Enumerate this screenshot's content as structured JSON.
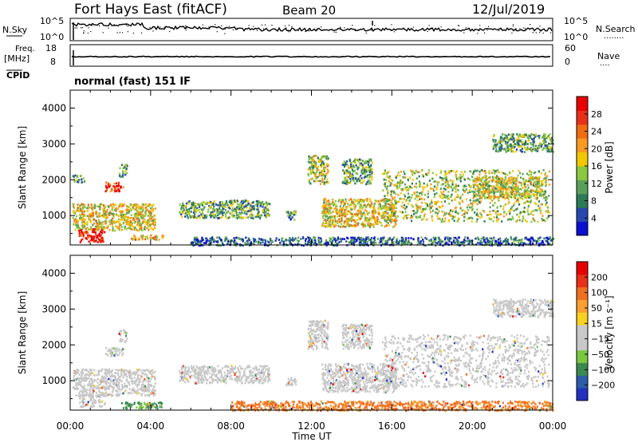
{
  "header": {
    "station": "Fort Hays East (fitACF)",
    "beam": "Beam 20",
    "date": "12/Jul/2019"
  },
  "top_panels": {
    "nsky_label": "N.Sky",
    "nsearch_label": "N.Search",
    "nsearch_dots": "........",
    "freq_label": "Freq.",
    "freq_unit": "[MHz]",
    "nave_label": "Nave",
    "nave_dots": "....",
    "cpid_label": "CPID",
    "noise_ticks_left": [
      "10^5",
      "10^0"
    ],
    "noise_ticks_right": [
      "10^5",
      "10^0"
    ],
    "freq_ticks": [
      "18",
      "8"
    ],
    "nave_ticks": [
      "60",
      "0"
    ],
    "program": "normal (fast) 151 IF"
  },
  "chart_data": [
    {
      "type": "heatmap",
      "name": "power",
      "ylabel": "Slant Range [km]",
      "xlabel": "Time UT",
      "xlim_hours": [
        0,
        24
      ],
      "ylim_km": [
        180,
        4500
      ],
      "x_ticks": [
        "00:00",
        "04:00",
        "08:00",
        "12:00",
        "16:00",
        "20:00",
        "00:00"
      ],
      "y_ticks": [
        "1000",
        "2000",
        "3000",
        "4000"
      ],
      "colorbar": {
        "label": "Power [dB]",
        "ticks": [
          "4",
          "8",
          "12",
          "16",
          "20",
          "24",
          "28"
        ],
        "colors": [
          "#0a10d0",
          "#2848b0",
          "#2a7a58",
          "#5aa05a",
          "#8cc840",
          "#f0c800",
          "#f89a20",
          "#f06c10",
          "#e83018",
          "#e80000"
        ]
      },
      "regions": [
        {
          "t0": 0.1,
          "t1": 4.2,
          "r0": 600,
          "r1": 1350,
          "level": 0.55
        },
        {
          "t0": 0.4,
          "t1": 1.7,
          "r0": 280,
          "r1": 650,
          "level": 0.95
        },
        {
          "t0": 1.7,
          "t1": 2.6,
          "r0": 1700,
          "r1": 1950,
          "level": 0.85
        },
        {
          "t0": 0.1,
          "t1": 0.7,
          "r0": 1950,
          "r1": 2150,
          "level": 0.3
        },
        {
          "t0": 2.4,
          "t1": 2.8,
          "r0": 2100,
          "r1": 2450,
          "level": 0.35
        },
        {
          "t0": 3.0,
          "t1": 4.6,
          "r0": 350,
          "r1": 480,
          "level": 0.6
        },
        {
          "t0": 5.4,
          "t1": 9.9,
          "r0": 950,
          "r1": 1450,
          "level": 0.35
        },
        {
          "t0": 10.7,
          "t1": 11.2,
          "r0": 900,
          "r1": 1150,
          "level": 0.3
        },
        {
          "t0": 11.8,
          "t1": 12.8,
          "r0": 1900,
          "r1": 2700,
          "level": 0.45
        },
        {
          "t0": 12.5,
          "t1": 16.2,
          "r0": 700,
          "r1": 1500,
          "level": 0.55
        },
        {
          "t0": 13.5,
          "t1": 15.0,
          "r0": 1900,
          "r1": 2600,
          "level": 0.35
        },
        {
          "t0": 15.5,
          "t1": 23.8,
          "r0": 850,
          "r1": 2300,
          "level": 0.45
        },
        {
          "t0": 20.0,
          "t1": 23.5,
          "r0": 1500,
          "r1": 2100,
          "level": 0.5
        },
        {
          "t0": 21.0,
          "t1": 24.0,
          "r0": 2800,
          "r1": 3300,
          "level": 0.35
        },
        {
          "t0": 6.0,
          "t1": 24.0,
          "r0": 190,
          "r1": 420,
          "level": 0.2
        }
      ]
    },
    {
      "type": "heatmap",
      "name": "velocity",
      "ylabel": "Slant Range [km]",
      "xlabel": "Time UT",
      "xlim_hours": [
        0,
        24
      ],
      "ylim_km": [
        180,
        4500
      ],
      "x_ticks": [
        "00:00",
        "04:00",
        "08:00",
        "12:00",
        "16:00",
        "20:00",
        "00:00"
      ],
      "y_ticks": [
        "1000",
        "2000",
        "3000",
        "4000"
      ],
      "colorbar": {
        "label": "Velocity [m s⁻¹]",
        "ticks": [
          "200",
          "100",
          "50",
          "15",
          "−15",
          "−50",
          "−100",
          "−200"
        ],
        "colors": [
          "#2230c0",
          "#2d5ca8",
          "#3a8a50",
          "#78c840",
          "#c8c8c8",
          "#c8c8c8",
          "#f8d020",
          "#f8a030",
          "#f07020",
          "#e83018",
          "#e80000"
        ]
      },
      "regions": [
        {
          "t0": 0.1,
          "t1": 4.2,
          "r0": 600,
          "r1": 1350,
          "level": 0.45
        },
        {
          "t0": 0.4,
          "t1": 1.7,
          "r0": 280,
          "r1": 650,
          "level": 0.5
        },
        {
          "t0": 1.7,
          "t1": 2.6,
          "r0": 1700,
          "r1": 1950,
          "level": 0.5
        },
        {
          "t0": 2.4,
          "t1": 2.8,
          "r0": 2100,
          "r1": 2450,
          "level": 0.5
        },
        {
          "t0": 2.5,
          "t1": 4.6,
          "r0": 250,
          "r1": 420,
          "level": 0.25
        },
        {
          "t0": 5.4,
          "t1": 9.9,
          "r0": 950,
          "r1": 1450,
          "level": 0.5
        },
        {
          "t0": 10.7,
          "t1": 11.2,
          "r0": 900,
          "r1": 1150,
          "level": 0.5
        },
        {
          "t0": 11.8,
          "t1": 12.8,
          "r0": 1900,
          "r1": 2700,
          "level": 0.5
        },
        {
          "t0": 12.5,
          "t1": 16.2,
          "r0": 700,
          "r1": 1500,
          "level": 0.5
        },
        {
          "t0": 13.5,
          "t1": 15.0,
          "r0": 1900,
          "r1": 2600,
          "level": 0.5
        },
        {
          "t0": 15.5,
          "t1": 23.8,
          "r0": 850,
          "r1": 2300,
          "level": 0.5
        },
        {
          "t0": 21.0,
          "t1": 24.0,
          "r0": 2800,
          "r1": 3300,
          "level": 0.5
        },
        {
          "t0": 8.0,
          "t1": 24.0,
          "r0": 190,
          "r1": 450,
          "level": 0.75
        }
      ]
    }
  ]
}
